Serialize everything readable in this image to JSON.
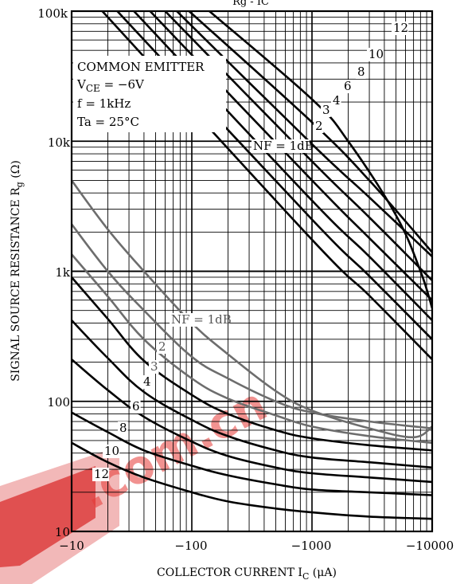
{
  "chart_data": {
    "type": "line",
    "title": "Rg - IC",
    "xlabel": "COLLECTOR CURRENT  IC  (μA)",
    "ylabel": "SIGNAL SOURCE RESISTANCE  Rg  (Ω)",
    "xscale": "log",
    "yscale": "log",
    "xlim": [
      -10,
      -10000
    ],
    "ylim": [
      10,
      100000
    ],
    "x_tick_labels": [
      "−10",
      "−100",
      "−1000",
      "−10000"
    ],
    "y_tick_labels": [
      "10",
      "100",
      "1k",
      "10k",
      "100k"
    ],
    "grid": true,
    "conditions": [
      "COMMON EMITTER",
      "VCE = −6V",
      "f = 1kHz",
      "Ta = 25°C"
    ],
    "upper_series_label": "NF = 1dB",
    "lower_series_label": "NF = 1dB",
    "upper_series": [
      {
        "name": "1dB",
        "label": "NF = 1dB",
        "points": [
          [
            -140,
            100000
          ],
          [
            -1000,
            21000
          ],
          [
            -2000,
            10000
          ],
          [
            -5000,
            2700
          ],
          [
            -8000,
            1000
          ],
          [
            -10000,
            520
          ]
        ]
      },
      {
        "name": "2dB",
        "label": "2",
        "points": [
          [
            -95,
            100000
          ],
          [
            -1000,
            14000
          ],
          [
            -3000,
            5000
          ],
          [
            -10000,
            1400
          ]
        ]
      },
      {
        "name": "3dB",
        "label": "3",
        "points": [
          [
            -75,
            100000
          ],
          [
            -1000,
            9500
          ],
          [
            -3000,
            3700
          ],
          [
            -10000,
            1300
          ]
        ]
      },
      {
        "name": "4dB",
        "label": "4",
        "points": [
          [
            -60,
            100000
          ],
          [
            -1000,
            7000
          ],
          [
            -3000,
            2600
          ],
          [
            -10000,
            850
          ]
        ]
      },
      {
        "name": "6dB",
        "label": "6",
        "points": [
          [
            -45,
            100000
          ],
          [
            -1000,
            5000
          ],
          [
            -3000,
            1800
          ],
          [
            -10000,
            600
          ]
        ]
      },
      {
        "name": "8dB",
        "label": "8",
        "points": [
          [
            -33,
            100000
          ],
          [
            -1000,
            3500
          ],
          [
            -3000,
            1300
          ],
          [
            -10000,
            420
          ]
        ]
      },
      {
        "name": "10dB",
        "label": "10",
        "points": [
          [
            -24,
            100000
          ],
          [
            -1000,
            2500
          ],
          [
            -3000,
            920
          ],
          [
            -10000,
            300
          ]
        ]
      },
      {
        "name": "12dB",
        "label": "12",
        "points": [
          [
            -18,
            100000
          ],
          [
            -1000,
            1750
          ],
          [
            -3000,
            650
          ],
          [
            -10000,
            210
          ]
        ]
      }
    ],
    "lower_series": [
      {
        "name": "1dB",
        "label": "NF = 1dB",
        "points": [
          [
            -10,
            5000
          ],
          [
            -20,
            2100
          ],
          [
            -40,
            1000
          ],
          [
            -100,
            400
          ],
          [
            -200,
            230
          ],
          [
            -500,
            120
          ],
          [
            -1000,
            85
          ],
          [
            -3000,
            62
          ],
          [
            -7000,
            53
          ],
          [
            -10000,
            64
          ]
        ]
      },
      {
        "name": "2dB",
        "label": "2",
        "points": [
          [
            -10,
            2300
          ],
          [
            -20,
            1000
          ],
          [
            -40,
            500
          ],
          [
            -100,
            220
          ],
          [
            -200,
            150
          ],
          [
            -500,
            100
          ],
          [
            -1000,
            82
          ],
          [
            -3000,
            70
          ],
          [
            -10000,
            62
          ]
        ]
      },
      {
        "name": "3dB",
        "label": "3",
        "points": [
          [
            -10,
            1350
          ],
          [
            -20,
            640
          ],
          [
            -40,
            300
          ],
          [
            -100,
            150
          ],
          [
            -200,
            105
          ],
          [
            -500,
            78
          ],
          [
            -1000,
            64
          ],
          [
            -3000,
            54
          ],
          [
            -10000,
            48
          ]
        ]
      },
      {
        "name": "4dB",
        "label": "4",
        "points": [
          [
            -10,
            900
          ],
          [
            -20,
            430
          ],
          [
            -40,
            205
          ],
          [
            -100,
            112
          ],
          [
            -200,
            80
          ],
          [
            -500,
            60
          ],
          [
            -1000,
            52
          ],
          [
            -3000,
            46
          ],
          [
            -10000,
            42
          ]
        ]
      },
      {
        "name": "6dB",
        "label": "6",
        "points": [
          [
            -10,
            420
          ],
          [
            -20,
            215
          ],
          [
            -40,
            118
          ],
          [
            -100,
            72
          ],
          [
            -200,
            54
          ],
          [
            -500,
            42
          ],
          [
            -1000,
            37
          ],
          [
            -3000,
            34
          ],
          [
            -10000,
            31
          ]
        ]
      },
      {
        "name": "8dB",
        "label": "8",
        "points": [
          [
            -10,
            210
          ],
          [
            -20,
            122
          ],
          [
            -40,
            76
          ],
          [
            -100,
            49
          ],
          [
            -200,
            38
          ],
          [
            -500,
            31
          ],
          [
            -1000,
            28
          ],
          [
            -3000,
            26
          ],
          [
            -10000,
            24
          ]
        ]
      },
      {
        "name": "10dB",
        "label": "10",
        "points": [
          [
            -10,
            82
          ],
          [
            -20,
            58
          ],
          [
            -40,
            42
          ],
          [
            -100,
            32
          ],
          [
            -200,
            27
          ],
          [
            -500,
            23
          ],
          [
            -1000,
            21
          ],
          [
            -3000,
            20
          ],
          [
            -10000,
            19
          ]
        ]
      },
      {
        "name": "12dB",
        "label": "12",
        "points": [
          [
            -10,
            48
          ],
          [
            -20,
            34
          ],
          [
            -40,
            26
          ],
          [
            -100,
            20
          ],
          [
            -200,
            17
          ],
          [
            -500,
            15
          ],
          [
            -1000,
            14
          ],
          [
            -3000,
            13
          ],
          [
            -10000,
            12.5
          ]
        ]
      }
    ]
  },
  "watermark": {
    "text_1": ".com.cn",
    "color": "#e53935"
  },
  "colors": {
    "line": "#000000",
    "grid": "#000000",
    "lower_curve_gray": "#6d6d6d",
    "background": "#ffffff"
  }
}
